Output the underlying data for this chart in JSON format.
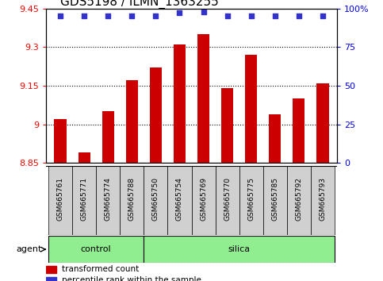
{
  "title": "GDS5198 / ILMN_1363255",
  "samples": [
    "GSM665761",
    "GSM665771",
    "GSM665774",
    "GSM665788",
    "GSM665750",
    "GSM665754",
    "GSM665769",
    "GSM665770",
    "GSM665775",
    "GSM665785",
    "GSM665792",
    "GSM665793"
  ],
  "groups": [
    "control",
    "control",
    "control",
    "control",
    "silica",
    "silica",
    "silica",
    "silica",
    "silica",
    "silica",
    "silica",
    "silica"
  ],
  "transformed_counts": [
    9.02,
    8.89,
    9.05,
    9.17,
    9.22,
    9.31,
    9.35,
    9.14,
    9.27,
    9.04,
    9.1,
    9.16
  ],
  "percentile_ranks": [
    95,
    95,
    95,
    95,
    95,
    97,
    98,
    95,
    95,
    95,
    95,
    95
  ],
  "ylim_left": [
    8.85,
    9.45
  ],
  "ylim_right": [
    0,
    100
  ],
  "yticks_left": [
    8.85,
    9.0,
    9.15,
    9.3,
    9.45
  ],
  "yticks_right": [
    0,
    25,
    50,
    75,
    100
  ],
  "ytick_labels_left": [
    "8.85",
    "9",
    "9.15",
    "9.3",
    "9.45"
  ],
  "ytick_labels_right": [
    "0",
    "25",
    "50",
    "75",
    "100%"
  ],
  "bar_color": "#cc0000",
  "dot_color": "#3333cc",
  "bar_bottom": 8.85,
  "control_color": "#90EE90",
  "silica_color": "#90EE90",
  "n_control": 4,
  "n_silica": 8,
  "title_fontsize": 11,
  "tick_fontsize": 8,
  "bar_width": 0.5
}
